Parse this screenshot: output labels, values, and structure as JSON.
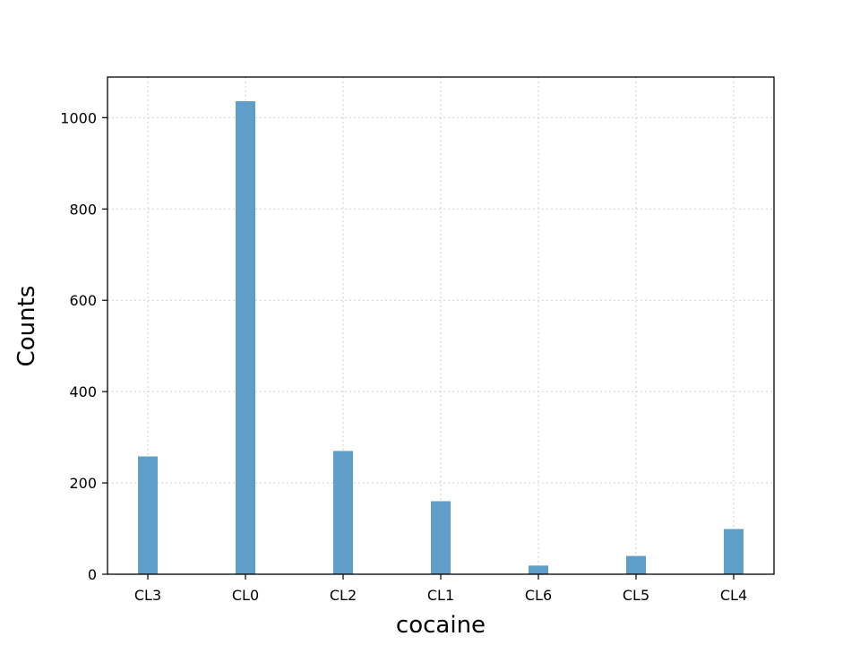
{
  "chart_data": {
    "type": "bar",
    "title": "",
    "xlabel": "cocaine",
    "ylabel": "Counts",
    "categories": [
      "CL3",
      "CL0",
      "CL2",
      "CL1",
      "CL6",
      "CL5",
      "CL4"
    ],
    "values": [
      258,
      1036,
      270,
      160,
      19,
      40,
      99
    ],
    "ylim": [
      0,
      1089
    ],
    "yticks": [
      0,
      200,
      400,
      600,
      800,
      1000
    ],
    "grid": true,
    "bar_color": "#5f9ec9",
    "legend": "none"
  }
}
